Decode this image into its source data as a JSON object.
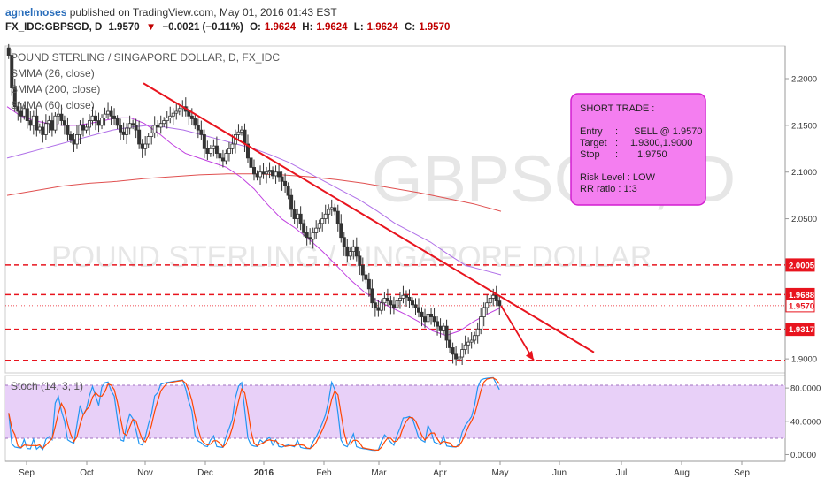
{
  "header": {
    "publisher": "agnelmoses",
    "published_text": "published on TradingView.com, May 01, 2016 01:43 EST",
    "symbol": "FX_IDC:GBPSGD, D",
    "last": "1.9570",
    "change": "−0.0021 (−0.11%)",
    "o_label": "O:",
    "o_value": "1.9624",
    "h_label": "H:",
    "h_value": "1.9624",
    "l_label": "L:",
    "l_value": "1.9624",
    "c_label": "C:",
    "c_value": "1.9570"
  },
  "watermark": {
    "ticker": "GBPSGD, D",
    "name": "POUND STERLING / SINGAPORE DOLLAR"
  },
  "studies": {
    "title": "POUND STERLING / SINGAPORE DOLLAR, D, FX_IDC",
    "smma26": "SMMA (26, close)",
    "smma200": "SMMA (200, close)",
    "smma60": "SMMA (60, close)",
    "stoch": "Stoch (14, 3, 1)"
  },
  "trade_box": {
    "title": "SHORT TRADE :",
    "entry_label": "Entry",
    "entry_value": "SELL @ 1.9570",
    "target_label": "Target",
    "target_value": "1.9300,1.9000",
    "stop_label": "Stop",
    "stop_value": "1.9750",
    "risk": "Risk Level : LOW",
    "rr": "RR ratio : 1:3"
  },
  "colors": {
    "accent_red": "#e8141e",
    "box_fill": "#f47ef0",
    "box_border": "#d21fd0",
    "smma26": "#c040e0",
    "smma60": "#b070e8",
    "smma200": "#e05050",
    "stoch_bg": "#e8d0f8",
    "stoch_k": "#2196f3",
    "stoch_d": "#ff4500"
  },
  "chart_data": {
    "type": "candlestick",
    "x_labels": [
      "Sep",
      "Oct",
      "Nov",
      "Dec",
      "2016",
      "Feb",
      "Mar",
      "Apr",
      "May",
      "Jun",
      "Jul",
      "Aug",
      "Sep"
    ],
    "y_ticks": [
      "2.2000",
      "2.1500",
      "2.1000",
      "2.0500",
      "1.9000"
    ],
    "ylim": [
      1.885,
      2.235
    ],
    "price_labels": [
      {
        "value": 2.0005,
        "text": "2.0005"
      },
      {
        "value": 1.9688,
        "text": "1.9688"
      },
      {
        "value": 1.957,
        "text": "1.9570"
      },
      {
        "value": 1.9317,
        "text": "1.9317"
      }
    ],
    "horizontal_levels": [
      2.0005,
      1.9688,
      1.9317,
      1.8985
    ],
    "trendline": {
      "from": [
        "Nov",
        2.195
      ],
      "to": [
        "Jun 20",
        1.907
      ]
    },
    "projection_arrow": {
      "from": 1.957,
      "to": 1.8985
    },
    "close_series": [
      2.225,
      2.19,
      2.17,
      2.165,
      2.16,
      2.168,
      2.155,
      2.15,
      2.16,
      2.145,
      2.148,
      2.14,
      2.152,
      2.155,
      2.145,
      2.16,
      2.162,
      2.155,
      2.15,
      2.14,
      2.135,
      2.13,
      2.14,
      2.15,
      2.145,
      2.148,
      2.155,
      2.16,
      2.155,
      2.15,
      2.158,
      2.162,
      2.165,
      2.16,
      2.157,
      2.15,
      2.143,
      2.14,
      2.147,
      2.152,
      2.15,
      2.145,
      2.13,
      2.125,
      2.13,
      2.138,
      2.142,
      2.15,
      2.148,
      2.152,
      2.155,
      2.158,
      2.16,
      2.163,
      2.165,
      2.168,
      2.17,
      2.165,
      2.16,
      2.157,
      2.15,
      2.145,
      2.14,
      2.125,
      2.12,
      2.125,
      2.128,
      2.12,
      2.115,
      2.112,
      2.12,
      2.125,
      2.13,
      2.14,
      2.143,
      2.145,
      2.13,
      2.115,
      2.105,
      2.098,
      2.095,
      2.1,
      2.098,
      2.1,
      2.102,
      2.096,
      2.1,
      2.095,
      2.09,
      2.085,
      2.075,
      2.06,
      2.05,
      2.055,
      2.045,
      2.035,
      2.03,
      2.028,
      2.035,
      2.04,
      2.045,
      2.05,
      2.055,
      2.06,
      2.062,
      2.058,
      2.045,
      2.03,
      2.02,
      2.01,
      2.015,
      2.02,
      2.01,
      2.0,
      1.99,
      1.985,
      1.975,
      1.96,
      1.955,
      1.952,
      1.96,
      1.965,
      1.962,
      1.958,
      1.955,
      1.962,
      1.965,
      1.968,
      1.966,
      1.962,
      1.958,
      1.955,
      1.95,
      1.945,
      1.94,
      1.948,
      1.945,
      1.94,
      1.935,
      1.93,
      1.935,
      1.92,
      1.912,
      1.905,
      1.9,
      1.902,
      1.91,
      1.915,
      1.918,
      1.92,
      1.925,
      1.932,
      1.945,
      1.955,
      1.96,
      1.965,
      1.968,
      1.962,
      1.957
    ],
    "smma26": [
      2.17,
      2.16,
      2.155,
      2.152,
      2.15,
      2.15,
      2.152,
      2.155,
      2.158,
      2.158,
      2.152,
      2.142,
      2.13,
      2.12,
      2.115,
      2.11,
      2.105,
      2.095,
      2.082,
      2.065,
      2.05,
      2.04,
      2.028,
      2.015,
      2.0,
      1.985,
      1.972,
      1.962,
      1.955,
      1.948,
      1.94,
      1.93,
      1.925,
      1.93,
      1.94,
      1.948,
      1.955
    ],
    "smma60": [
      2.115,
      2.12,
      2.125,
      2.13,
      2.135,
      2.14,
      2.145,
      2.148,
      2.15,
      2.148,
      2.145,
      2.14,
      2.135,
      2.13,
      2.125,
      2.118,
      2.11,
      2.1,
      2.09,
      2.08,
      2.07,
      2.058,
      2.045,
      2.035,
      2.025,
      2.012,
      2.0,
      1.995,
      1.99
    ],
    "smma200": [
      2.075,
      2.08,
      2.085,
      2.088,
      2.09,
      2.093,
      2.095,
      2.097,
      2.098,
      2.098,
      2.097,
      2.095,
      2.092,
      2.088,
      2.083,
      2.078,
      2.072,
      2.066,
      2.058
    ],
    "stoch_ticks": [
      "80.0000",
      "40.0000",
      "0.0000"
    ],
    "stoch_ylim": [
      -8,
      95
    ],
    "stoch_levels": [
      80,
      20
    ]
  }
}
